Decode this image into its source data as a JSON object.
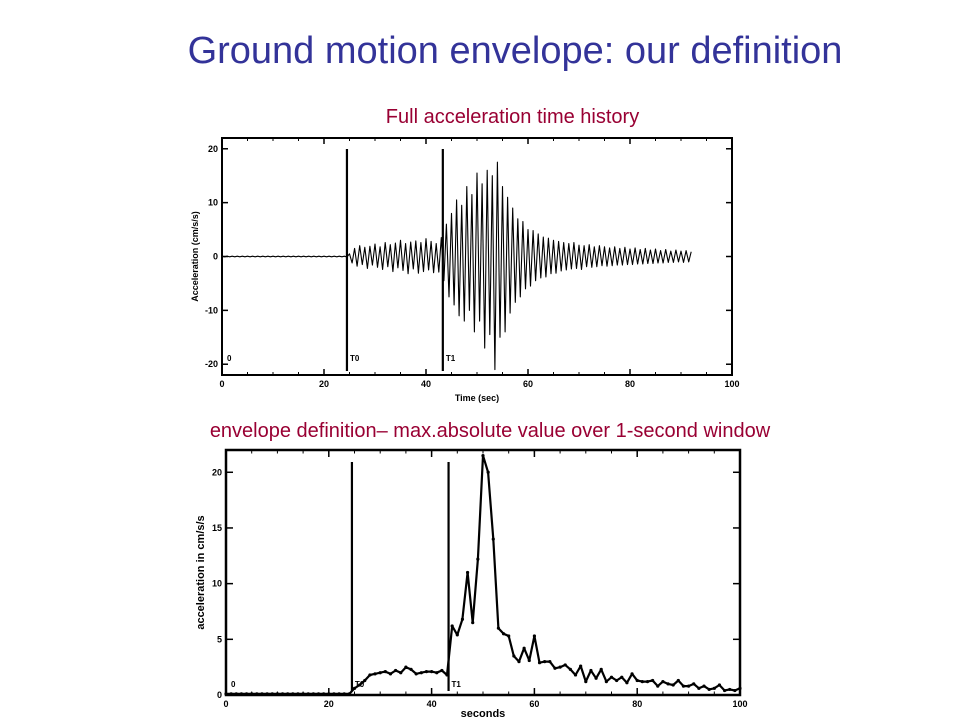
{
  "slide": {
    "title": "Ground motion envelope: our definition",
    "caption_top": "Full acceleration time history",
    "caption_bottom": "envelope definition– max.absolute value over 1-second window"
  },
  "colors": {
    "title": "#333399",
    "caption": "#990033",
    "trace": "#000000"
  },
  "chart_data": [
    {
      "type": "line",
      "title": "",
      "xlabel": "Time (sec)",
      "ylabel": "Acceleration (cm/s/s)",
      "xlim": [
        0,
        100
      ],
      "ylim": [
        -22,
        22
      ],
      "xticks": [
        "0",
        "20",
        "40",
        "60",
        "80",
        "100"
      ],
      "yticks": [
        "-20",
        "-10",
        "0",
        "10",
        "20"
      ],
      "grid": false,
      "markers": [
        {
          "x": 0,
          "label": "0",
          "line": false
        },
        {
          "x": 24.5,
          "label": "T0",
          "line": true
        },
        {
          "x": 43.3,
          "label": "T1",
          "line": true
        }
      ],
      "series": [
        {
          "description_x_step": 0.5,
          "x_start": 0,
          "values": [
            0.05,
            -0.05,
            0.05,
            -0.05,
            0.05,
            -0.05,
            0.05,
            -0.05,
            0.05,
            -0.05,
            0.05,
            -0.05,
            0.05,
            -0.05,
            0.05,
            -0.05,
            0.05,
            -0.05,
            0.05,
            -0.05,
            0.05,
            -0.05,
            0.05,
            -0.05,
            0.05,
            -0.05,
            0.05,
            -0.05,
            0.05,
            -0.05,
            0.05,
            -0.05,
            0.05,
            -0.05,
            0.05,
            -0.05,
            0.05,
            -0.05,
            0.05,
            -0.05,
            0.05,
            -0.05,
            0.05,
            -0.05,
            0.05,
            -0.05,
            0.05,
            -0.05,
            0.05,
            -0.1,
            0.5,
            -1.2,
            1.5,
            -1.8,
            2.0,
            -1.5,
            1.7,
            -2.2,
            1.9,
            -1.6,
            2.3,
            -2.0,
            1.8,
            -2.4,
            2.6,
            -1.9,
            2.2,
            -2.8,
            2.5,
            -2.1,
            3.0,
            -2.6,
            2.4,
            -3.2,
            2.7,
            -2.3,
            2.9,
            -3.1,
            2.6,
            -2.8,
            3.3,
            -2.5,
            2.8,
            -3.0,
            2.4,
            -2.9,
            3.5,
            -4.5,
            6.0,
            -7.5,
            8.0,
            -9.0,
            10.5,
            -11.0,
            9.5,
            -12.0,
            13.0,
            -10.0,
            11.5,
            -14.0,
            15.5,
            -12.0,
            13.5,
            -17.0,
            16.0,
            -14.5,
            15.0,
            -21.0,
            17.5,
            -15.0,
            13.0,
            -14.0,
            11.0,
            -10.5,
            9.0,
            -8.5,
            7.0,
            -7.5,
            6.5,
            -6.0,
            5.0,
            -5.5,
            4.8,
            -4.5,
            4.2,
            -4.0,
            3.6,
            -3.8,
            3.4,
            -3.2,
            3.0,
            -3.1,
            2.8,
            -2.7,
            2.6,
            -2.5,
            2.4,
            -2.3,
            2.6,
            -2.2,
            2.1,
            -2.4,
            2.0,
            -1.9,
            2.2,
            -2.0,
            1.8,
            -1.9,
            2.0,
            -1.7,
            1.8,
            -1.8,
            1.6,
            -1.7,
            1.8,
            -1.6,
            1.5,
            -1.6,
            1.7,
            -1.5,
            1.4,
            -1.5,
            1.6,
            -1.4,
            1.3,
            -1.4,
            1.5,
            -1.3,
            1.2,
            -1.3,
            1.4,
            -1.2,
            1.1,
            -1.2,
            1.3,
            -1.1,
            1.0,
            -1.1,
            1.2,
            -1.0,
            1.0,
            -1.1,
            1.1,
            -1.0,
            0.9
          ]
        }
      ]
    },
    {
      "type": "line",
      "title": "",
      "xlabel": "seconds",
      "ylabel": "acceleration in cm/s/s",
      "xlim": [
        0,
        100
      ],
      "ylim": [
        0,
        22
      ],
      "xticks": [
        "0",
        "20",
        "40",
        "60",
        "80",
        "100"
      ],
      "yticks": [
        "0",
        "5",
        "10",
        "15",
        "20"
      ],
      "grid": false,
      "markers": [
        {
          "x": 0,
          "label": "0",
          "line": false
        },
        {
          "x": 24.5,
          "label": "T0",
          "line": true
        },
        {
          "x": 43.3,
          "label": "T1",
          "line": true
        }
      ],
      "series": [
        {
          "x_start": 0,
          "x_step": 1,
          "values": [
            0.1,
            0.1,
            0.1,
            0.1,
            0.1,
            0.1,
            0.1,
            0.1,
            0.1,
            0.1,
            0.1,
            0.1,
            0.1,
            0.1,
            0.1,
            0.1,
            0.1,
            0.1,
            0.1,
            0.1,
            0.1,
            0.1,
            0.1,
            0.1,
            0.1,
            0.6,
            0.9,
            1.3,
            1.8,
            1.9,
            2.0,
            2.1,
            1.9,
            2.2,
            2.0,
            2.5,
            2.3,
            1.9,
            2.0,
            2.1,
            2.1,
            2.0,
            2.2,
            1.8,
            6.2,
            5.4,
            6.8,
            11.0,
            6.5,
            12.2,
            21.5,
            20.0,
            14.0,
            6.0,
            5.5,
            5.3,
            3.5,
            3.0,
            4.2,
            3.1,
            5.3,
            2.9,
            3.0,
            3.0,
            2.4,
            2.5,
            2.7,
            2.3,
            1.8,
            2.6,
            1.2,
            2.2,
            1.5,
            2.3,
            1.2,
            1.6,
            1.3,
            1.6,
            1.1,
            1.9,
            1.3,
            1.2,
            1.2,
            1.3,
            0.8,
            1.2,
            1.0,
            0.9,
            1.3,
            0.8,
            0.8,
            1.0,
            0.6,
            0.8,
            0.5,
            0.6,
            0.9,
            0.4,
            0.5,
            0.4,
            0.6
          ]
        }
      ]
    }
  ]
}
